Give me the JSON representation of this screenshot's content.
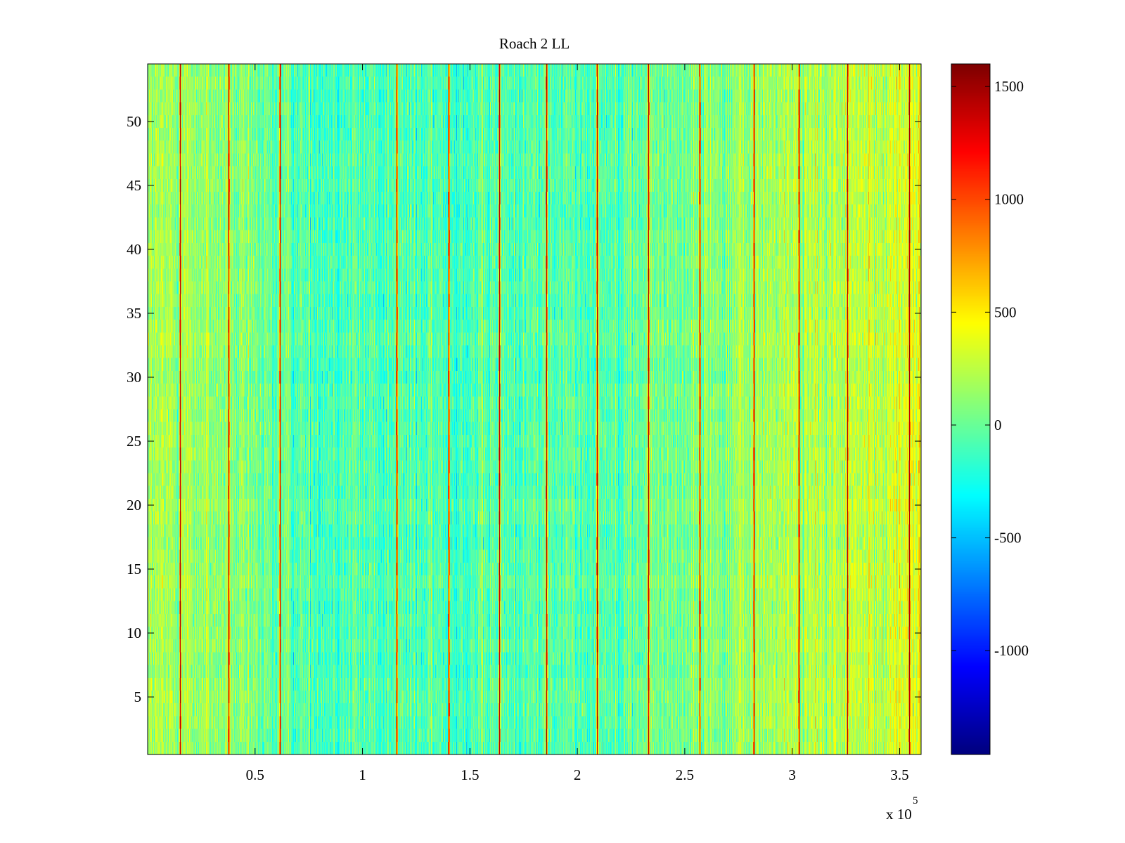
{
  "chart_data": {
    "type": "heatmap",
    "title": "Roach 2 LL",
    "xlabel": "",
    "ylabel": "",
    "x_range": [
      0,
      360000
    ],
    "y_range": [
      0.5,
      54.5
    ],
    "x_ticks": [
      {
        "value": 50000,
        "label": "0.5"
      },
      {
        "value": 100000,
        "label": "1"
      },
      {
        "value": 150000,
        "label": "1.5"
      },
      {
        "value": 200000,
        "label": "2"
      },
      {
        "value": 250000,
        "label": "2.5"
      },
      {
        "value": 300000,
        "label": "3"
      },
      {
        "value": 350000,
        "label": "3.5"
      }
    ],
    "x_multiplier": {
      "base": "x 10",
      "exponent": "5"
    },
    "y_ticks": [
      {
        "value": 5,
        "label": "5"
      },
      {
        "value": 10,
        "label": "10"
      },
      {
        "value": 15,
        "label": "15"
      },
      {
        "value": 20,
        "label": "20"
      },
      {
        "value": 25,
        "label": "25"
      },
      {
        "value": 30,
        "label": "30"
      },
      {
        "value": 35,
        "label": "35"
      },
      {
        "value": 40,
        "label": "40"
      },
      {
        "value": 45,
        "label": "45"
      },
      {
        "value": 50,
        "label": "50"
      }
    ],
    "rows": 54,
    "colorbar": {
      "range": [
        -1460,
        1600
      ],
      "colormap": "jet",
      "ticks": [
        {
          "value": -1000,
          "label": "-1000"
        },
        {
          "value": -500,
          "label": "-500"
        },
        {
          "value": 0,
          "label": "0"
        },
        {
          "value": 500,
          "label": "500"
        },
        {
          "value": 1000,
          "label": "1000"
        },
        {
          "value": 1500,
          "label": "1500"
        }
      ]
    },
    "background_level": 0,
    "trend": [
      {
        "x": 0,
        "value": 150
      },
      {
        "x": 20000,
        "value": 170
      },
      {
        "x": 60000,
        "value": -40
      },
      {
        "x": 120000,
        "value": -90
      },
      {
        "x": 200000,
        "value": -60
      },
      {
        "x": 240000,
        "value": 20
      },
      {
        "x": 290000,
        "value": 180
      },
      {
        "x": 330000,
        "value": 230
      },
      {
        "x": 360000,
        "value": 380
      }
    ],
    "spike_lines_x": [
      15000,
      37500,
      61500,
      116000,
      140000,
      163500,
      185500,
      209000,
      233000,
      257000,
      282000,
      303000,
      325500,
      354500
    ],
    "spike_value": 1450
  }
}
